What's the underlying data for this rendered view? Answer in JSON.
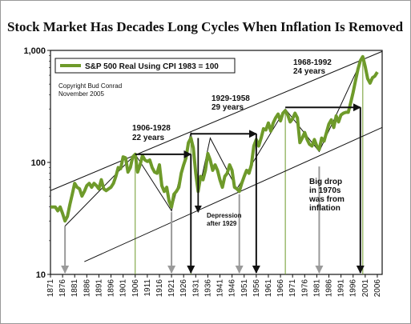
{
  "chart_data": {
    "type": "line",
    "title": "Stock Market Has Decades Long Cycles When Inflation Is Removed",
    "y_scale": "log",
    "ylim": [
      10,
      1000
    ],
    "y_ticks": [
      "10",
      "100",
      "1,000"
    ],
    "xlim": [
      1871,
      2008
    ],
    "x_ticks": [
      "1871",
      "1876",
      "1881",
      "1886",
      "1891",
      "1896",
      "1901",
      "1906",
      "1911",
      "1916",
      "1921",
      "1926",
      "1931",
      "1936",
      "1941",
      "1946",
      "1951",
      "1956",
      "1961",
      "1966",
      "1971",
      "1976",
      "1981",
      "1986",
      "1991",
      "1996",
      "2001",
      "2006"
    ],
    "legend": {
      "placement": "top-left",
      "label": "S&P 500 Real Using CPI 1983 = 100"
    },
    "copyright": [
      "Copyright Bud Conrad",
      "November 2005"
    ],
    "series": [
      {
        "name": "S&P 500 Real Using CPI 1983 = 100",
        "color": "#6e9a2a",
        "points": [
          [
            1871,
            40
          ],
          [
            1872,
            40
          ],
          [
            1873,
            40
          ],
          [
            1874,
            37
          ],
          [
            1875,
            40
          ],
          [
            1876,
            35
          ],
          [
            1877,
            30
          ],
          [
            1878,
            33
          ],
          [
            1879,
            42
          ],
          [
            1880,
            52
          ],
          [
            1881,
            65
          ],
          [
            1882,
            60
          ],
          [
            1883,
            58
          ],
          [
            1884,
            50
          ],
          [
            1885,
            55
          ],
          [
            1886,
            62
          ],
          [
            1887,
            65
          ],
          [
            1888,
            60
          ],
          [
            1889,
            65
          ],
          [
            1890,
            62
          ],
          [
            1891,
            58
          ],
          [
            1892,
            70
          ],
          [
            1893,
            58
          ],
          [
            1894,
            56
          ],
          [
            1895,
            58
          ],
          [
            1896,
            60
          ],
          [
            1897,
            65
          ],
          [
            1898,
            75
          ],
          [
            1899,
            90
          ],
          [
            1900,
            88
          ],
          [
            1901,
            112
          ],
          [
            1902,
            110
          ],
          [
            1903,
            82
          ],
          [
            1904,
            90
          ],
          [
            1905,
            112
          ],
          [
            1906,
            118
          ],
          [
            1907,
            82
          ],
          [
            1908,
            95
          ],
          [
            1909,
            115
          ],
          [
            1910,
            105
          ],
          [
            1911,
            102
          ],
          [
            1912,
            105
          ],
          [
            1913,
            90
          ],
          [
            1914,
            82
          ],
          [
            1915,
            80
          ],
          [
            1916,
            95
          ],
          [
            1917,
            62
          ],
          [
            1918,
            55
          ],
          [
            1919,
            60
          ],
          [
            1920,
            45
          ],
          [
            1921,
            40
          ],
          [
            1922,
            52
          ],
          [
            1923,
            55
          ],
          [
            1924,
            60
          ],
          [
            1925,
            80
          ],
          [
            1926,
            95
          ],
          [
            1927,
            110
          ],
          [
            1928,
            150
          ],
          [
            1929,
            165
          ],
          [
            1930,
            135
          ],
          [
            1931,
            80
          ],
          [
            1932,
            55
          ],
          [
            1933,
            75
          ],
          [
            1934,
            70
          ],
          [
            1935,
            85
          ],
          [
            1936,
            120
          ],
          [
            1937,
            105
          ],
          [
            1938,
            85
          ],
          [
            1939,
            95
          ],
          [
            1940,
            85
          ],
          [
            1941,
            70
          ],
          [
            1942,
            60
          ],
          [
            1943,
            75
          ],
          [
            1944,
            80
          ],
          [
            1945,
            95
          ],
          [
            1946,
            85
          ],
          [
            1947,
            60
          ],
          [
            1948,
            58
          ],
          [
            1949,
            55
          ],
          [
            1950,
            65
          ],
          [
            1951,
            75
          ],
          [
            1952,
            85
          ],
          [
            1953,
            80
          ],
          [
            1954,
            95
          ],
          [
            1955,
            140
          ],
          [
            1956,
            160
          ],
          [
            1957,
            140
          ],
          [
            1958,
            165
          ],
          [
            1959,
            200
          ],
          [
            1960,
            195
          ],
          [
            1961,
            225
          ],
          [
            1962,
            190
          ],
          [
            1963,
            225
          ],
          [
            1964,
            250
          ],
          [
            1965,
            270
          ],
          [
            1966,
            235
          ],
          [
            1967,
            275
          ],
          [
            1968,
            290
          ],
          [
            1969,
            265
          ],
          [
            1970,
            230
          ],
          [
            1971,
            245
          ],
          [
            1972,
            275
          ],
          [
            1973,
            250
          ],
          [
            1974,
            150
          ],
          [
            1975,
            165
          ],
          [
            1976,
            185
          ],
          [
            1977,
            160
          ],
          [
            1978,
            145
          ],
          [
            1979,
            140
          ],
          [
            1980,
            160
          ],
          [
            1981,
            140
          ],
          [
            1982,
            130
          ],
          [
            1983,
            165
          ],
          [
            1984,
            155
          ],
          [
            1985,
            185
          ],
          [
            1986,
            220
          ],
          [
            1987,
            240
          ],
          [
            1988,
            205
          ],
          [
            1989,
            260
          ],
          [
            1990,
            230
          ],
          [
            1991,
            265
          ],
          [
            1992,
            275
          ],
          [
            1993,
            280
          ],
          [
            1994,
            280
          ],
          [
            1995,
            340
          ],
          [
            1996,
            420
          ],
          [
            1997,
            540
          ],
          [
            1998,
            680
          ],
          [
            1999,
            810
          ],
          [
            2000,
            880
          ],
          [
            2001,
            720
          ],
          [
            2002,
            560
          ],
          [
            2003,
            510
          ],
          [
            2004,
            570
          ],
          [
            2005,
            590
          ],
          [
            2006,
            640
          ]
        ]
      }
    ],
    "annotations": [
      {
        "label": "1906-1928",
        "sub": "22 years"
      },
      {
        "label": "1929-1958",
        "sub": "29 years"
      },
      {
        "label": "1968-1992",
        "sub": "24 years"
      },
      {
        "label": "Depression",
        "sub": "after 1929"
      },
      {
        "label": "Big drop",
        "sub": "in 1970s",
        "extra": "was from",
        "extra2": "inflation"
      }
    ]
  }
}
